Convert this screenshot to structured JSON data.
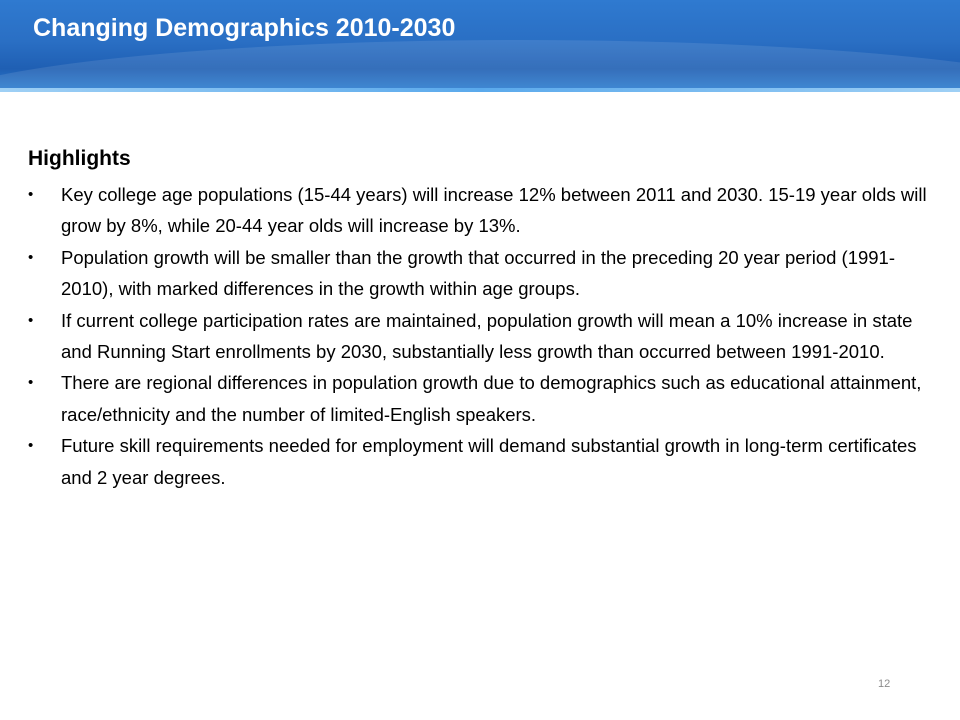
{
  "header": {
    "title": "Changing Demographics 2010-2030",
    "accent_color": "#2a6fc4"
  },
  "main": {
    "subhead": "Highlights",
    "bullet_glyph": "•",
    "bullets": [
      "Key college age populations  (15-44 years) will increase 12% between 2011 and 2030.  15-19 year olds will grow by 8%, while 20-44 year olds will increase by 13%.",
      "Population growth will be smaller than the growth that occurred in the preceding 20 year period (1991-2010), with marked differences in the growth within age groups.",
      "If current college participation rates are maintained, population growth will mean a 10% increase in state and Running Start enrollments by 2030, substantially less growth than occurred between 1991-2010.",
      "There are regional differences in population growth due to demographics such as  educational attainment, race/ethnicity and the number of limited-English speakers.",
      "Future skill requirements needed for employment will demand substantial growth in long-term certificates and 2 year degrees."
    ]
  },
  "footer": {
    "page_number": "12"
  }
}
